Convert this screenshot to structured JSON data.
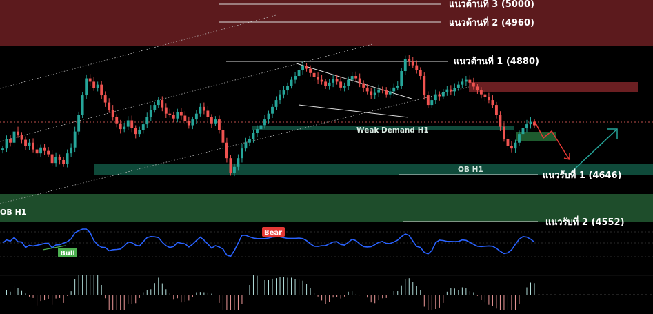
{
  "chart_data": {
    "type": "candlestick",
    "title": "",
    "price_range": [
      4520,
      5000
    ],
    "resistance_levels": [
      {
        "name": "แนวต้านที่ 3",
        "value": 5000,
        "label": "แนวต้านที่ 3 (5000)"
      },
      {
        "name": "แนวต้านที่ 2",
        "value": 4960,
        "label": "แนวต้านที่ 2 (4960)"
      },
      {
        "name": "แนวต้านที่ 1",
        "value": 4880,
        "label": "แนวต้านที่ 1 (4880)"
      }
    ],
    "support_levels": [
      {
        "name": "แนวรับที่ 1",
        "value": 4646,
        "label": "แนวรับที่ 1 (4646)"
      },
      {
        "name": "แนวรับที่ 2",
        "value": 4552,
        "label": "แนวรับที่ 2 (4552)"
      }
    ],
    "zones": [
      {
        "label": "Weak Demand H1",
        "type": "demand"
      },
      {
        "label": "OB H1",
        "type": "order-block"
      },
      {
        "label": "OB H1",
        "type": "order-block"
      }
    ],
    "indicator_labels": {
      "bull": "Bull",
      "bear": "Bear"
    },
    "candles_close": [
      4700,
      4720,
      4712,
      4735,
      4728,
      4718,
      4705,
      4712,
      4698,
      4690,
      4702,
      4695,
      4688,
      4670,
      4682,
      4676,
      4668,
      4690,
      4702,
      4735,
      4770,
      4810,
      4845,
      4838,
      4825,
      4832,
      4810,
      4795,
      4780,
      4765,
      4752,
      4740,
      4745,
      4758,
      4742,
      4730,
      4738,
      4750,
      4765,
      4780,
      4790,
      4800,
      4785,
      4772,
      4770,
      4762,
      4775,
      4768,
      4756,
      4748,
      4760,
      4772,
      4786,
      4778,
      4765,
      4752,
      4760,
      4738,
      4712,
      4680,
      4650,
      4662,
      4680,
      4700,
      4712,
      4720,
      4732,
      4740,
      4748,
      4760,
      4772,
      4786,
      4800,
      4812,
      4820,
      4830,
      4842,
      4850,
      4862,
      4870,
      4865,
      4856,
      4848,
      4842,
      4838,
      4830,
      4836,
      4844,
      4838,
      4826,
      4830,
      4842,
      4850,
      4845,
      4835,
      4826,
      4818,
      4810,
      4815,
      4822,
      4820,
      4812,
      4818,
      4826,
      4830,
      4860,
      4885,
      4880,
      4872,
      4862,
      4850,
      4810,
      4790,
      4800,
      4812,
      4808,
      4816,
      4822,
      4818,
      4825,
      4832,
      4838,
      4842,
      4836,
      4828,
      4820,
      4812,
      4806,
      4800,
      4790,
      4770,
      4745,
      4720,
      4705,
      4700,
      4712,
      4730,
      4742,
      4750,
      4755,
      4748
    ],
    "colors": {
      "bull_candle": "#26a69a",
      "bear_candle": "#ef5350",
      "resistance_band": "#5c1a1d",
      "demand_zone": "#0f4a3a",
      "ob_zone": "#1e4d2b",
      "rsi_line": "#2962ff",
      "bull_arrow": "#26a69a",
      "bear_arrow": "#e53935"
    }
  }
}
